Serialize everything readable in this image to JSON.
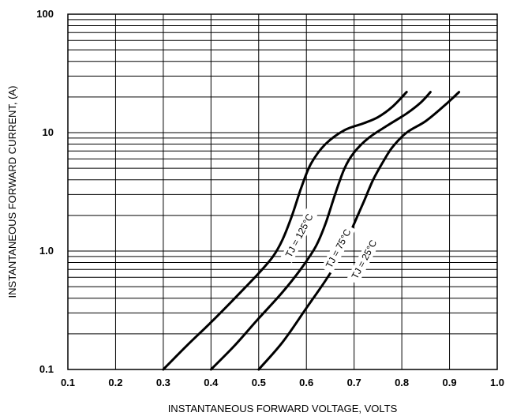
{
  "chart_data": {
    "type": "line",
    "title": "",
    "xlabel": "INSTANTANEOUS FORWARD VOLTAGE, VOLTS",
    "ylabel": "INSTANTANEOUS  FORWARD CURRENT, (A)",
    "xlim": [
      0.1,
      1.0
    ],
    "ylim": [
      0.1,
      100
    ],
    "y_scale": "log",
    "grid": true,
    "x_ticks": [
      "0.1",
      "0.2",
      "0.3",
      "0.4",
      "0.5",
      "0.6",
      "0.7",
      "0.8",
      "0.9",
      "1.0"
    ],
    "y_ticks": [
      {
        "value": 0.1,
        "label": "0.1"
      },
      {
        "value": 1,
        "label": "1.0"
      },
      {
        "value": 10,
        "label": "10"
      },
      {
        "value": 100,
        "label": "100"
      }
    ],
    "series": [
      {
        "name": "TJ = 125°C",
        "color": "#000000",
        "points": [
          [
            0.3,
            0.1
          ],
          [
            0.35,
            0.16
          ],
          [
            0.4,
            0.25
          ],
          [
            0.45,
            0.4
          ],
          [
            0.5,
            0.65
          ],
          [
            0.53,
            0.9
          ],
          [
            0.55,
            1.25
          ],
          [
            0.57,
            2.0
          ],
          [
            0.59,
            3.5
          ],
          [
            0.61,
            5.5
          ],
          [
            0.64,
            8.0
          ],
          [
            0.68,
            10.5
          ],
          [
            0.72,
            12.0
          ],
          [
            0.75,
            13.5
          ],
          [
            0.78,
            16.5
          ],
          [
            0.81,
            22.0
          ]
        ]
      },
      {
        "name": "TJ = 75°C",
        "color": "#000000",
        "points": [
          [
            0.4,
            0.1
          ],
          [
            0.45,
            0.16
          ],
          [
            0.5,
            0.27
          ],
          [
            0.55,
            0.45
          ],
          [
            0.59,
            0.72
          ],
          [
            0.62,
            1.1
          ],
          [
            0.64,
            1.7
          ],
          [
            0.66,
            3.0
          ],
          [
            0.68,
            5.0
          ],
          [
            0.7,
            6.8
          ],
          [
            0.73,
            9.0
          ],
          [
            0.77,
            11.5
          ],
          [
            0.81,
            14.5
          ],
          [
            0.84,
            18.0
          ],
          [
            0.86,
            22.0
          ]
        ]
      },
      {
        "name": "TJ = 25°C",
        "color": "#000000",
        "points": [
          [
            0.5,
            0.1
          ],
          [
            0.55,
            0.17
          ],
          [
            0.6,
            0.33
          ],
          [
            0.65,
            0.65
          ],
          [
            0.68,
            1.1
          ],
          [
            0.7,
            1.7
          ],
          [
            0.72,
            2.6
          ],
          [
            0.74,
            4.0
          ],
          [
            0.76,
            5.6
          ],
          [
            0.78,
            7.5
          ],
          [
            0.81,
            10.0
          ],
          [
            0.85,
            12.5
          ],
          [
            0.89,
            17.0
          ],
          [
            0.92,
            22.0
          ]
        ]
      }
    ]
  }
}
